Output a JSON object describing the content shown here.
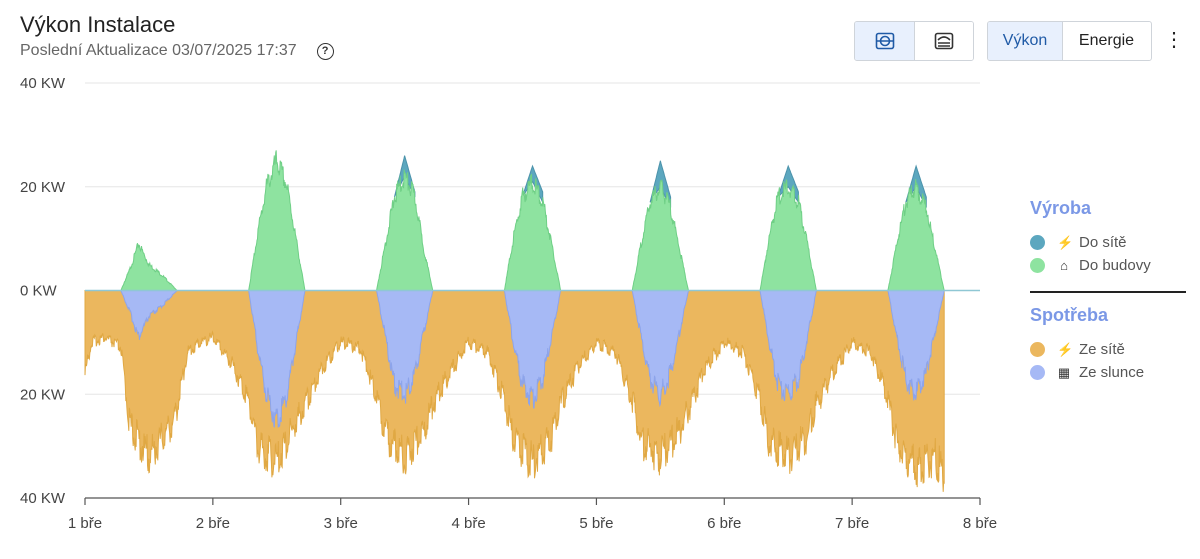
{
  "header": {
    "title": "Výkon Instalace",
    "subtitle": "Poslední Aktualizace 03/07/2025 17:37",
    "help_glyph": "?"
  },
  "toolbar": {
    "view_buttons": [
      {
        "icon": "split-view-icon",
        "glyph": "⊖"
      },
      {
        "icon": "stacked-view-icon",
        "glyph": "☰"
      }
    ],
    "mode_buttons": [
      "Výkon",
      "Energie"
    ],
    "active_mode": "Výkon",
    "menu_glyph": "⋮"
  },
  "legend": {
    "groups": [
      {
        "title": "Výroba",
        "items": [
          {
            "label": "Do sítě",
            "color": "#5ca7bf",
            "icon": "transmission-tower-icon",
            "glyph": "⚡"
          },
          {
            "label": "Do budovy",
            "color": "#8ee3a0",
            "icon": "building-icon",
            "glyph": "⌂"
          }
        ]
      },
      {
        "title": "Spotřeba",
        "items": [
          {
            "label": "Ze sítě",
            "color": "#ebb75e",
            "icon": "transmission-tower-icon",
            "glyph": "⚡"
          },
          {
            "label": "Ze slunce",
            "color": "#a6b9f5",
            "icon": "solar-panel-icon",
            "glyph": "▦"
          }
        ]
      }
    ]
  },
  "chart_data": {
    "type": "area",
    "title": "Výkon Instalace",
    "ylabel": "kW",
    "ylim": [
      -40,
      40
    ],
    "ytick_labels": [
      "40 KW",
      "20 KW",
      "0 KW",
      "20 KW",
      "40 KW"
    ],
    "yticks": [
      40,
      20,
      0,
      -20,
      -40
    ],
    "xlim": [
      0,
      7
    ],
    "xtick_labels": [
      "1 bře",
      "2 bře",
      "3 bře",
      "4 bře",
      "5 bře",
      "6 bře",
      "7 bře",
      "8 bře"
    ],
    "xticks": [
      0,
      1,
      2,
      3,
      4,
      5,
      6,
      7
    ],
    "grid": true,
    "series": [
      {
        "name": "Do budovy",
        "kind": "production",
        "x": [
          0.28,
          0.35,
          0.42,
          0.5,
          0.55,
          0.6,
          0.68,
          0.72,
          1.28,
          1.35,
          1.42,
          1.5,
          1.58,
          1.65,
          1.72,
          2.28,
          2.35,
          2.42,
          2.5,
          2.58,
          2.65,
          2.72,
          3.28,
          3.35,
          3.42,
          3.5,
          3.58,
          3.65,
          3.72,
          4.28,
          4.35,
          4.42,
          4.5,
          4.58,
          4.65,
          4.72,
          5.28,
          5.35,
          5.42,
          5.5,
          5.58,
          5.65,
          5.72,
          6.28,
          6.35,
          6.42,
          6.5,
          6.58,
          6.65,
          6.72
        ],
        "y": [
          0,
          4,
          9,
          5,
          4,
          3,
          1,
          0,
          0,
          11,
          20,
          25,
          20,
          10,
          0,
          0,
          9,
          18,
          22,
          18,
          8,
          0,
          0,
          10,
          18,
          21,
          17,
          9,
          0,
          0,
          9,
          17,
          20,
          16,
          8,
          0,
          0,
          10,
          18,
          20,
          17,
          9,
          0,
          0,
          9,
          17,
          20,
          16,
          8,
          0
        ]
      },
      {
        "name": "Do sítě",
        "kind": "production",
        "x": [
          2.42,
          2.5,
          2.58,
          3.42,
          3.5,
          3.58,
          4.42,
          4.5,
          4.58,
          5.42,
          5.5,
          5.58,
          6.42,
          6.5,
          6.58
        ],
        "y": [
          0,
          4,
          1,
          0,
          3,
          2,
          0,
          5,
          2,
          0,
          4,
          2,
          0,
          4,
          2
        ]
      },
      {
        "name": "Ze slunce",
        "kind": "consumption",
        "x": [
          0.28,
          0.35,
          0.42,
          0.5,
          0.55,
          0.6,
          0.68,
          0.72,
          1.28,
          1.35,
          1.42,
          1.5,
          1.58,
          1.65,
          1.72,
          2.28,
          2.35,
          2.42,
          2.5,
          2.58,
          2.65,
          2.72,
          3.28,
          3.35,
          3.42,
          3.5,
          3.58,
          3.65,
          3.72,
          4.28,
          4.35,
          4.42,
          4.5,
          4.58,
          4.65,
          4.72,
          5.28,
          5.35,
          5.42,
          5.5,
          5.58,
          5.65,
          5.72,
          6.28,
          6.35,
          6.42,
          6.5,
          6.58,
          6.65,
          6.72
        ],
        "y": [
          0,
          -4,
          -9,
          -5,
          -4,
          -3,
          -1,
          0,
          0,
          -11,
          -20,
          -25,
          -20,
          -10,
          0,
          0,
          -9,
          -18,
          -20,
          -16,
          -8,
          0,
          0,
          -10,
          -18,
          -21,
          -17,
          -9,
          0,
          0,
          -9,
          -17,
          -20,
          -16,
          -8,
          0,
          0,
          -10,
          -18,
          -20,
          -17,
          -9,
          0,
          0,
          -9,
          -17,
          -20,
          -16,
          -8,
          0
        ]
      },
      {
        "name": "Ze sítě",
        "kind": "consumption",
        "x": [
          0,
          0.05,
          0.15,
          0.28,
          0.35,
          0.5,
          0.7,
          0.8,
          0.9,
          1.0,
          1.15,
          1.28,
          1.35,
          1.5,
          1.6,
          1.72,
          1.85,
          2.0,
          2.15,
          2.28,
          2.35,
          2.5,
          2.65,
          2.72,
          2.85,
          3.0,
          3.15,
          3.28,
          3.35,
          3.5,
          3.65,
          3.72,
          3.85,
          4.0,
          4.15,
          4.28,
          4.35,
          4.5,
          4.65,
          4.72,
          4.85,
          5.0,
          5.15,
          5.28,
          5.35,
          5.5,
          5.65,
          5.72,
          5.85,
          6.0,
          6.15,
          6.28,
          6.35,
          6.5,
          6.65,
          6.72
        ],
        "y": [
          -16,
          -10,
          -9,
          -11,
          -26,
          -32,
          -25,
          -12,
          -10,
          -9,
          -14,
          -21,
          -30,
          -33,
          -28,
          -22,
          -15,
          -10,
          -11,
          -20,
          -28,
          -32,
          -27,
          -22,
          -16,
          -10,
          -12,
          -21,
          -29,
          -33,
          -28,
          -22,
          -15,
          -10,
          -12,
          -21,
          -29,
          -32,
          -27,
          -23,
          -15,
          -10,
          -12,
          -21,
          -29,
          -32,
          -28,
          -22,
          -16,
          -10,
          -12,
          -21,
          -30,
          -34,
          -32,
          -36
        ]
      }
    ]
  }
}
